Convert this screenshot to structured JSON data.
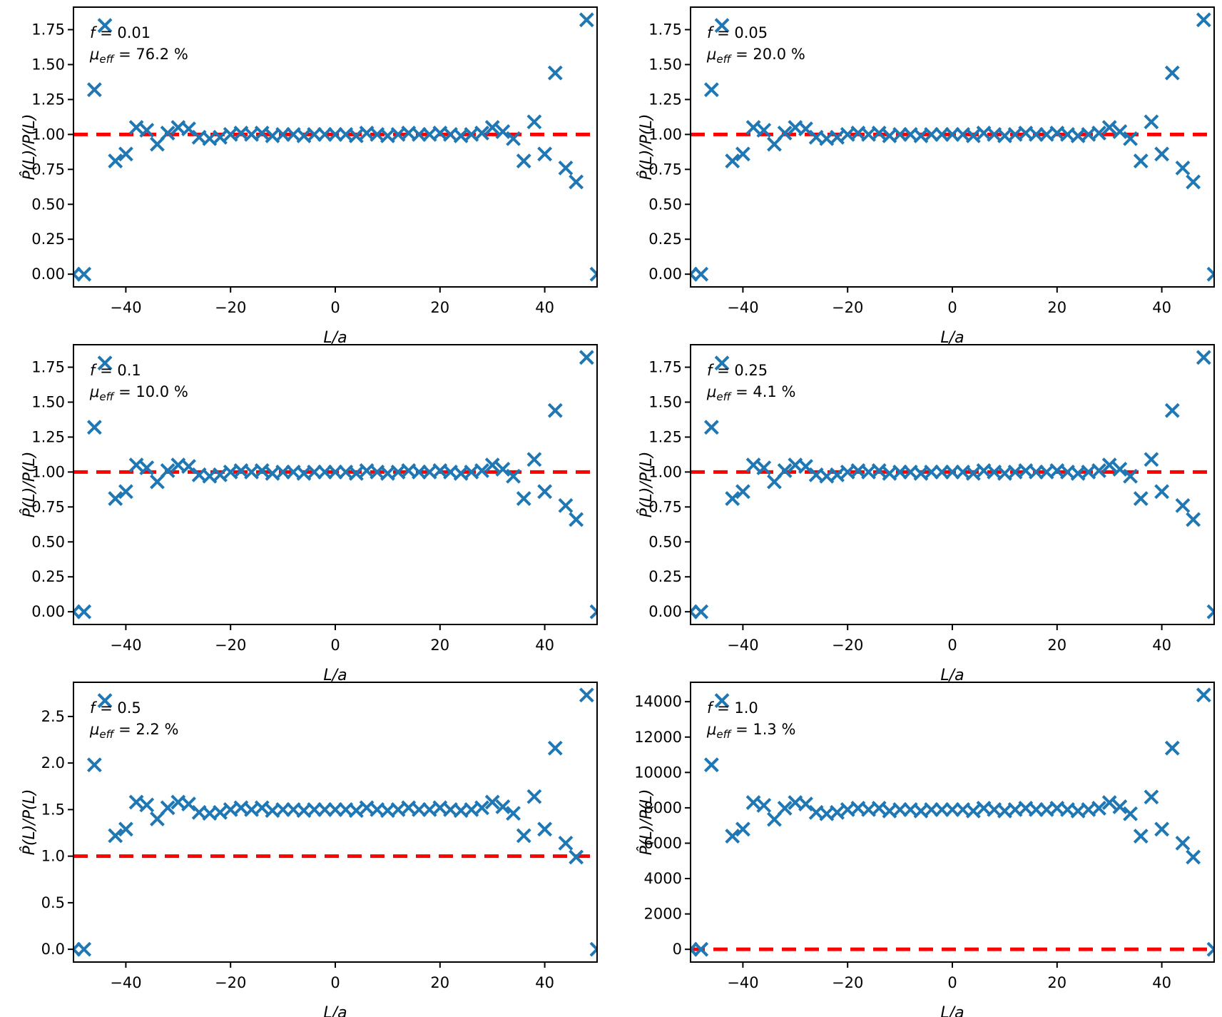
{
  "figure": {
    "background_color": "#ffffff",
    "marker_color": "#1f77b4",
    "ref_line_color": "#ff0000",
    "axis_color": "#000000",
    "xlabel": "L/a",
    "ylabel": "P̂(L)/P(L)"
  },
  "chart_data": [
    {
      "id": "f-0.01",
      "type": "scatter",
      "marker": "x",
      "annotation": {
        "f_symbol": "f",
        "f_value": "0.01",
        "mu_symbol": "μ",
        "mu_subscript": "eff",
        "mu_value": "76.2 %"
      },
      "xlabel": "L/a",
      "ylabel": "P̂(L)/P(L)",
      "xlim": [
        -50,
        50
      ],
      "ylim": [
        -0.091,
        1.911
      ],
      "ref_line_y": 1,
      "xticks": {
        "values": [
          -40,
          -20,
          0,
          20,
          40
        ],
        "labels": [
          "−40",
          "−20",
          "0",
          "20",
          "40"
        ]
      },
      "yticks": {
        "values": [
          0,
          0.25,
          0.5,
          0.75,
          1.0,
          1.25,
          1.5,
          1.75
        ],
        "labels": [
          "0.00",
          "0.25",
          "0.50",
          "0.75",
          "1.00",
          "1.25",
          "1.50",
          "1.75"
        ]
      },
      "x": [
        -50,
        -48,
        -46,
        -44,
        -42,
        -40,
        -38,
        -36,
        -34,
        -32,
        -30,
        -28,
        -26,
        -24,
        -22,
        -20,
        -18,
        -16,
        -14,
        -12,
        -10,
        -8,
        -6,
        -4,
        -2,
        0,
        2,
        4,
        6,
        8,
        10,
        12,
        14,
        16,
        18,
        20,
        22,
        24,
        26,
        28,
        30,
        32,
        34,
        36,
        38,
        40,
        42,
        44,
        46,
        48,
        50
      ],
      "y": [
        0.0,
        0.0,
        1.32,
        1.78,
        0.81,
        0.86,
        1.05,
        1.03,
        0.93,
        1.01,
        1.05,
        1.04,
        0.98,
        0.97,
        0.98,
        1.0,
        1.01,
        1.0,
        1.01,
        0.99,
        1.0,
        1.0,
        0.99,
        1.0,
        1.0,
        1.0,
        1.0,
        0.99,
        1.01,
        1.0,
        0.99,
        1.0,
        1.01,
        1.0,
        1.0,
        1.01,
        1.0,
        0.99,
        1.0,
        1.01,
        1.05,
        1.02,
        0.97,
        0.81,
        1.09,
        0.86,
        1.44,
        0.76,
        0.66,
        1.82,
        0.0
      ]
    },
    {
      "id": "f-0.05",
      "type": "scatter",
      "marker": "x",
      "annotation": {
        "f_symbol": "f",
        "f_value": "0.05",
        "mu_symbol": "μ",
        "mu_subscript": "eff",
        "mu_value": "20.0 %"
      },
      "xlabel": "L/a",
      "ylabel": "P̂(L)/P(L)",
      "xlim": [
        -50,
        50
      ],
      "ylim": [
        -0.091,
        1.911
      ],
      "ref_line_y": 1,
      "xticks": {
        "values": [
          -40,
          -20,
          0,
          20,
          40
        ],
        "labels": [
          "−40",
          "−20",
          "0",
          "20",
          "40"
        ]
      },
      "yticks": {
        "values": [
          0,
          0.25,
          0.5,
          0.75,
          1.0,
          1.25,
          1.5,
          1.75
        ],
        "labels": [
          "0.00",
          "0.25",
          "0.50",
          "0.75",
          "1.00",
          "1.25",
          "1.50",
          "1.75"
        ]
      },
      "x": [
        -50,
        -48,
        -46,
        -44,
        -42,
        -40,
        -38,
        -36,
        -34,
        -32,
        -30,
        -28,
        -26,
        -24,
        -22,
        -20,
        -18,
        -16,
        -14,
        -12,
        -10,
        -8,
        -6,
        -4,
        -2,
        0,
        2,
        4,
        6,
        8,
        10,
        12,
        14,
        16,
        18,
        20,
        22,
        24,
        26,
        28,
        30,
        32,
        34,
        36,
        38,
        40,
        42,
        44,
        46,
        48,
        50
      ],
      "y": [
        0.0,
        0.0,
        1.32,
        1.78,
        0.81,
        0.86,
        1.05,
        1.03,
        0.93,
        1.01,
        1.05,
        1.04,
        0.98,
        0.97,
        0.98,
        1.0,
        1.01,
        1.0,
        1.01,
        0.99,
        1.0,
        1.0,
        0.99,
        1.0,
        1.0,
        1.0,
        1.0,
        0.99,
        1.01,
        1.0,
        0.99,
        1.0,
        1.01,
        1.0,
        1.0,
        1.01,
        1.0,
        0.99,
        1.0,
        1.01,
        1.05,
        1.02,
        0.97,
        0.81,
        1.09,
        0.86,
        1.44,
        0.76,
        0.66,
        1.82,
        0.0
      ]
    },
    {
      "id": "f-0.1",
      "type": "scatter",
      "marker": "x",
      "annotation": {
        "f_symbol": "f",
        "f_value": "0.1",
        "mu_symbol": "μ",
        "mu_subscript": "eff",
        "mu_value": "10.0 %"
      },
      "xlabel": "L/a",
      "ylabel": "P̂(L)/P(L)",
      "xlim": [
        -50,
        50
      ],
      "ylim": [
        -0.091,
        1.911
      ],
      "ref_line_y": 1,
      "xticks": {
        "values": [
          -40,
          -20,
          0,
          20,
          40
        ],
        "labels": [
          "−40",
          "−20",
          "0",
          "20",
          "40"
        ]
      },
      "yticks": {
        "values": [
          0,
          0.25,
          0.5,
          0.75,
          1.0,
          1.25,
          1.5,
          1.75
        ],
        "labels": [
          "0.00",
          "0.25",
          "0.50",
          "0.75",
          "1.00",
          "1.25",
          "1.50",
          "1.75"
        ]
      },
      "x": [
        -50,
        -48,
        -46,
        -44,
        -42,
        -40,
        -38,
        -36,
        -34,
        -32,
        -30,
        -28,
        -26,
        -24,
        -22,
        -20,
        -18,
        -16,
        -14,
        -12,
        -10,
        -8,
        -6,
        -4,
        -2,
        0,
        2,
        4,
        6,
        8,
        10,
        12,
        14,
        16,
        18,
        20,
        22,
        24,
        26,
        28,
        30,
        32,
        34,
        36,
        38,
        40,
        42,
        44,
        46,
        48,
        50
      ],
      "y": [
        0.0,
        0.0,
        1.32,
        1.78,
        0.81,
        0.86,
        1.05,
        1.03,
        0.93,
        1.01,
        1.05,
        1.04,
        0.98,
        0.97,
        0.98,
        1.0,
        1.01,
        1.0,
        1.01,
        0.99,
        1.0,
        1.0,
        0.99,
        1.0,
        1.0,
        1.0,
        1.0,
        0.99,
        1.01,
        1.0,
        0.99,
        1.0,
        1.01,
        1.0,
        1.0,
        1.01,
        1.0,
        0.99,
        1.0,
        1.01,
        1.05,
        1.02,
        0.97,
        0.81,
        1.09,
        0.86,
        1.44,
        0.76,
        0.66,
        1.82,
        0.0
      ]
    },
    {
      "id": "f-0.25",
      "type": "scatter",
      "marker": "x",
      "annotation": {
        "f_symbol": "f",
        "f_value": "0.25",
        "mu_symbol": "μ",
        "mu_subscript": "eff",
        "mu_value": "4.1 %"
      },
      "xlabel": "L/a",
      "ylabel": "P̂(L)/P(L)",
      "xlim": [
        -50,
        50
      ],
      "ylim": [
        -0.091,
        1.911
      ],
      "ref_line_y": 1,
      "xticks": {
        "values": [
          -40,
          -20,
          0,
          20,
          40
        ],
        "labels": [
          "−40",
          "−20",
          "0",
          "20",
          "40"
        ]
      },
      "yticks": {
        "values": [
          0,
          0.25,
          0.5,
          0.75,
          1.0,
          1.25,
          1.5,
          1.75
        ],
        "labels": [
          "0.00",
          "0.25",
          "0.50",
          "0.75",
          "1.00",
          "1.25",
          "1.50",
          "1.75"
        ]
      },
      "x": [
        -50,
        -48,
        -46,
        -44,
        -42,
        -40,
        -38,
        -36,
        -34,
        -32,
        -30,
        -28,
        -26,
        -24,
        -22,
        -20,
        -18,
        -16,
        -14,
        -12,
        -10,
        -8,
        -6,
        -4,
        -2,
        0,
        2,
        4,
        6,
        8,
        10,
        12,
        14,
        16,
        18,
        20,
        22,
        24,
        26,
        28,
        30,
        32,
        34,
        36,
        38,
        40,
        42,
        44,
        46,
        48,
        50
      ],
      "y": [
        0.0,
        0.0,
        1.32,
        1.78,
        0.81,
        0.86,
        1.05,
        1.03,
        0.93,
        1.01,
        1.05,
        1.04,
        0.98,
        0.97,
        0.98,
        1.0,
        1.01,
        1.0,
        1.01,
        0.99,
        1.0,
        1.0,
        0.99,
        1.0,
        1.0,
        1.0,
        1.0,
        0.99,
        1.01,
        1.0,
        0.99,
        1.0,
        1.01,
        1.0,
        1.0,
        1.01,
        1.0,
        0.99,
        1.0,
        1.01,
        1.05,
        1.02,
        0.97,
        0.81,
        1.09,
        0.86,
        1.44,
        0.76,
        0.66,
        1.82,
        0.0
      ]
    },
    {
      "id": "f-0.5",
      "type": "scatter",
      "marker": "x",
      "annotation": {
        "f_symbol": "f",
        "f_value": "0.5",
        "mu_symbol": "μ",
        "mu_subscript": "eff",
        "mu_value": "2.2 %"
      },
      "xlabel": "L/a",
      "ylabel": "P̂(L)/P(L)",
      "xlim": [
        -50,
        50
      ],
      "ylim": [
        -0.137,
        2.867
      ],
      "ref_line_y": 1,
      "xticks": {
        "values": [
          -40,
          -20,
          0,
          20,
          40
        ],
        "labels": [
          "−40",
          "−20",
          "0",
          "20",
          "40"
        ]
      },
      "yticks": {
        "values": [
          0,
          0.5,
          1.0,
          1.5,
          2.0,
          2.5
        ],
        "labels": [
          "0.0",
          "0.5",
          "1.0",
          "1.5",
          "2.0",
          "2.5"
        ]
      },
      "x": [
        -50,
        -48,
        -46,
        -44,
        -42,
        -40,
        -38,
        -36,
        -34,
        -32,
        -30,
        -28,
        -26,
        -24,
        -22,
        -20,
        -18,
        -16,
        -14,
        -12,
        -10,
        -8,
        -6,
        -4,
        -2,
        0,
        2,
        4,
        6,
        8,
        10,
        12,
        14,
        16,
        18,
        20,
        22,
        24,
        26,
        28,
        30,
        32,
        34,
        36,
        38,
        40,
        42,
        44,
        46,
        48,
        50
      ],
      "y": [
        0.0,
        0.0,
        1.98,
        2.67,
        1.22,
        1.29,
        1.58,
        1.55,
        1.4,
        1.52,
        1.58,
        1.56,
        1.47,
        1.46,
        1.47,
        1.5,
        1.52,
        1.5,
        1.52,
        1.49,
        1.5,
        1.5,
        1.49,
        1.5,
        1.5,
        1.5,
        1.5,
        1.49,
        1.52,
        1.5,
        1.49,
        1.5,
        1.52,
        1.5,
        1.5,
        1.52,
        1.5,
        1.49,
        1.5,
        1.52,
        1.58,
        1.53,
        1.46,
        1.22,
        1.64,
        1.29,
        2.16,
        1.14,
        0.99,
        2.73,
        0.0
      ]
    },
    {
      "id": "f-1.0",
      "type": "scatter",
      "marker": "x",
      "annotation": {
        "f_symbol": "f",
        "f_value": "1.0",
        "mu_symbol": "μ",
        "mu_subscript": "eff",
        "mu_value": "1.3 %"
      },
      "xlabel": "L/a",
      "ylabel": "P̂(L)/P(L)",
      "xlim": [
        -50,
        50
      ],
      "ylim": [
        -719,
        15097
      ],
      "ref_line_y": 1,
      "xticks": {
        "values": [
          -40,
          -20,
          0,
          20,
          40
        ],
        "labels": [
          "−40",
          "−20",
          "0",
          "20",
          "40"
        ]
      },
      "yticks": {
        "values": [
          0,
          2000,
          4000,
          6000,
          8000,
          10000,
          12000,
          14000
        ],
        "labels": [
          "0",
          "2000",
          "4000",
          "6000",
          "8000",
          "10000",
          "12000",
          "14000"
        ]
      },
      "x": [
        -50,
        -48,
        -46,
        -44,
        -42,
        -40,
        -38,
        -36,
        -34,
        -32,
        -30,
        -28,
        -26,
        -24,
        -22,
        -20,
        -18,
        -16,
        -14,
        -12,
        -10,
        -8,
        -6,
        -4,
        -2,
        0,
        2,
        4,
        6,
        8,
        10,
        12,
        14,
        16,
        18,
        20,
        22,
        24,
        26,
        28,
        30,
        32,
        34,
        36,
        38,
        40,
        42,
        44,
        46,
        48,
        50
      ],
      "y": [
        0,
        0,
        10428,
        14062,
        6399,
        6794,
        8295,
        8137,
        7347,
        7979,
        8295,
        8216,
        7742,
        7663,
        7742,
        7900,
        7979,
        7900,
        7979,
        7821,
        7900,
        7900,
        7821,
        7900,
        7900,
        7900,
        7900,
        7821,
        7979,
        7900,
        7821,
        7900,
        7979,
        7900,
        7900,
        7979,
        7900,
        7821,
        7900,
        7979,
        8295,
        8058,
        7663,
        6399,
        8611,
        6794,
        11376,
        6004,
        5214,
        14378,
        0
      ]
    }
  ]
}
